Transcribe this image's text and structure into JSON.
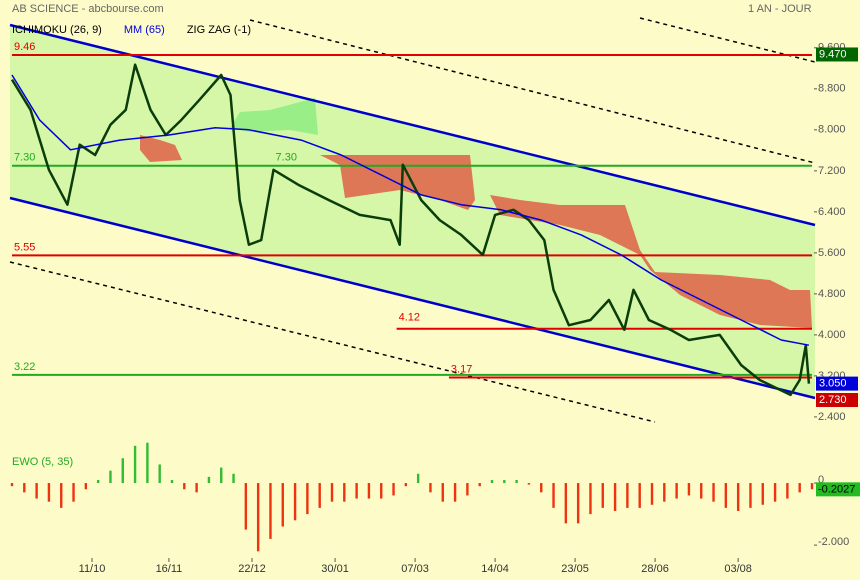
{
  "chart_data": [
    {
      "type": "line",
      "title": "AB SCIENCE - abcbourse.com",
      "subtitle": "1 AN - JOUR",
      "legend": [
        {
          "label": "ICHIMOKU (26, 9)",
          "color": "#000000"
        },
        {
          "label": "MM (65)",
          "color": "#0000dd"
        },
        {
          "label": "ZIG ZAG (-1)",
          "color": "#000000"
        }
      ],
      "xlim": [
        0,
        260
      ],
      "xticks": [
        {
          "value": 26,
          "label": "11/10"
        },
        {
          "value": 51,
          "label": "16/11"
        },
        {
          "value": 78,
          "label": "22/12"
        },
        {
          "value": 105,
          "label": "30/01"
        },
        {
          "value": 131,
          "label": "07/03"
        },
        {
          "value": 157,
          "label": "14/04"
        },
        {
          "value": 183,
          "label": "23/05"
        },
        {
          "value": 209,
          "label": "28/06"
        },
        {
          "value": 236,
          "label": "03/08"
        }
      ],
      "ylim": [
        2.34,
        10.24
      ],
      "yticks": [
        {
          "value": 2.4,
          "label": "2.400"
        },
        {
          "value": 3.2,
          "label": "3.200"
        },
        {
          "value": 4,
          "label": "4.000"
        },
        {
          "value": 4.8,
          "label": "4.800"
        },
        {
          "value": 5.6,
          "label": "5.600"
        },
        {
          "value": 6.4,
          "label": "6.400"
        },
        {
          "value": 7.2,
          "label": "7.200"
        },
        {
          "value": 8,
          "label": "8.000"
        },
        {
          "value": 8.8,
          "label": "8.800"
        },
        {
          "value": 9.6,
          "label": "9.600"
        }
      ],
      "series": [
        {
          "color": "#0b3d0b",
          "x": [
            0,
            6,
            12,
            18,
            22,
            27,
            32,
            37,
            40,
            45,
            50,
            55,
            61,
            68,
            71,
            74,
            77,
            81,
            85,
            93,
            103,
            113,
            123,
            126,
            127,
            133,
            139,
            146,
            153,
            157,
            163,
            168,
            173,
            176,
            181,
            188,
            194,
            199,
            202,
            207,
            214,
            220,
            230,
            237,
            243,
            253,
            256,
            258,
            259
          ],
          "values": [
            8.98,
            8.39,
            7.22,
            6.54,
            7.71,
            7.51,
            8.1,
            8.39,
            9.27,
            8.39,
            7.9,
            8.19,
            8.59,
            9.07,
            8.68,
            6.63,
            5.76,
            5.85,
            7.22,
            6.93,
            6.63,
            6.34,
            6.24,
            5.76,
            7.32,
            6.63,
            6.24,
            5.95,
            5.56,
            6.34,
            6.44,
            6.24,
            5.85,
            4.88,
            4.19,
            4.29,
            4.68,
            4.1,
            4.88,
            4.29,
            4.1,
            3.9,
            4.0,
            3.41,
            3.12,
            2.83,
            3.12,
            3.8,
            3.05
          ]
        },
        {
          "color": "#0000dd",
          "x": [
            0,
            9,
            19,
            35,
            51,
            66,
            77,
            94,
            107,
            120,
            133,
            146,
            159,
            172,
            185,
            198,
            211,
            224,
            237,
            250,
            259
          ],
          "values": [
            9.07,
            8.19,
            7.61,
            7.8,
            7.9,
            8.04,
            8.0,
            7.8,
            7.51,
            7.12,
            6.73,
            6.54,
            6.44,
            6.24,
            5.95,
            5.56,
            5.07,
            4.68,
            4.29,
            3.9,
            3.8
          ]
        }
      ],
      "levels": [
        {
          "value": 9.46,
          "color": "#e00000"
        },
        {
          "value": 7.3,
          "label": "7.30",
          "color": "#22aa22",
          "label_at": [
            0,
            85
          ]
        },
        {
          "value": 5.55,
          "color": "#e00000"
        },
        {
          "value": 4.12,
          "color": "#e00000",
          "x_start": 125,
          "big": true
        },
        {
          "value": 3.22,
          "color": "#22aa22"
        },
        {
          "value": 3.17,
          "color": "#e00000",
          "x_start": 142
        }
      ],
      "last_marks": [
        {
          "value": 9.47,
          "label": "9.470",
          "color": "#006600"
        },
        {
          "value": 3.05,
          "label": "3.050",
          "color": "#0000dd"
        },
        {
          "value": 2.73,
          "label": "2.730",
          "color": "#cc0000"
        }
      ]
    },
    {
      "type": "bar",
      "title": "EWO (5, 35)",
      "xlim": [
        0,
        260
      ],
      "ylim": [
        -2.48,
        1.71
      ],
      "yticks": [
        0,
        {
          "value": -2,
          "label": "-2.000"
        }
      ],
      "colors": {
        "positive": "#33bb33",
        "negative": "#ee3311"
      },
      "x": [
        0,
        4,
        8,
        12,
        16,
        20,
        24,
        28,
        32,
        36,
        40,
        44,
        48,
        52,
        56,
        60,
        64,
        68,
        72,
        76,
        80,
        84,
        88,
        92,
        96,
        100,
        104,
        108,
        112,
        116,
        120,
        124,
        128,
        132,
        136,
        140,
        144,
        148,
        152,
        156,
        160,
        164,
        168,
        172,
        176,
        180,
        184,
        188,
        192,
        196,
        200,
        204,
        208,
        212,
        216,
        220,
        224,
        228,
        232,
        236,
        240,
        244,
        248,
        252,
        256,
        260
      ],
      "values": [
        -0.1,
        -0.3,
        -0.5,
        -0.6,
        -0.8,
        -0.6,
        -0.2,
        0.1,
        0.4,
        0.8,
        1.2,
        1.3,
        0.6,
        0.1,
        -0.2,
        -0.3,
        0.2,
        0.5,
        0.3,
        -1.5,
        -2.2,
        -1.8,
        -1.4,
        -1.2,
        -1.0,
        -0.8,
        -0.6,
        -0.6,
        -0.5,
        -0.5,
        -0.5,
        -0.4,
        -0.1,
        0.3,
        -0.3,
        -0.6,
        -0.6,
        -0.4,
        -0.1,
        0.1,
        0.1,
        0.1,
        -0.05,
        -0.3,
        -0.8,
        -1.3,
        -1.3,
        -1.0,
        -0.8,
        -0.9,
        -0.8,
        -0.8,
        -0.7,
        -0.6,
        -0.5,
        -0.4,
        -0.5,
        -0.6,
        -0.8,
        -0.9,
        -0.8,
        -0.7,
        -0.6,
        -0.5,
        -0.3,
        -0.2
      ],
      "last_label": {
        "value": -0.2027,
        "color": "#22bb22"
      }
    }
  ]
}
